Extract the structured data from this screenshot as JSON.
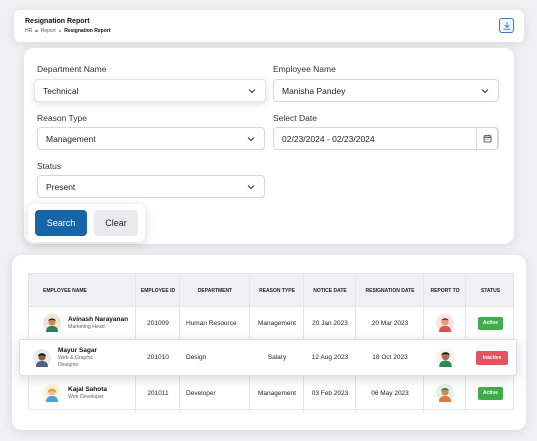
{
  "header": {
    "title": "Resignation Report",
    "breadcrumb": [
      "HR",
      "Report",
      "Resignation Report"
    ]
  },
  "filters": {
    "department": {
      "label": "Department Name",
      "value": "Technical"
    },
    "employee": {
      "label": "Employee Name",
      "value": "Manisha Pandey"
    },
    "reason": {
      "label": "Reason Type",
      "value": "Management"
    },
    "date": {
      "label": "Select Date",
      "value": "02/23/2024 - 02/23/2024"
    },
    "status": {
      "label": "Status",
      "value": "Present"
    },
    "search_label": "Search",
    "clear_label": "Clear"
  },
  "table": {
    "headers": {
      "employee_name": "EMPLOYEE NAME",
      "employee_id": "EMPLOYEE ID",
      "department": "DEPARTMENT",
      "reason_type": "REASON TYPE",
      "notice_date": "NOTICE DATE",
      "resignation_date": "RESIGNATION DATE",
      "report_to": "REPORT TO",
      "status": "STATUS"
    },
    "rows": [
      {
        "name": "Avinash Narayanan",
        "role": "Marketing Head",
        "id": "201009",
        "department": "Human Resource",
        "reason": "Management",
        "notice": "20 Jan 2023",
        "resignation": "20 Mar 2023",
        "status": "Active"
      },
      {
        "name": "Mayur Sagar",
        "role": "Web & Graphic Designer",
        "id": "201010",
        "department": "Design",
        "reason": "Salary",
        "notice": "12 Aug 2023",
        "resignation": "18 Oct 2023",
        "status": "Inactive"
      },
      {
        "name": "Kajal Sahota",
        "role": "Web Developer",
        "id": "201011",
        "department": "Developer",
        "reason": "Management",
        "notice": "03 Feb 2023",
        "resignation": "06 May 2023",
        "status": "Active"
      }
    ]
  },
  "colors": {
    "primary": "#1565a8",
    "active": "#3fae4a",
    "inactive": "#e05561"
  }
}
